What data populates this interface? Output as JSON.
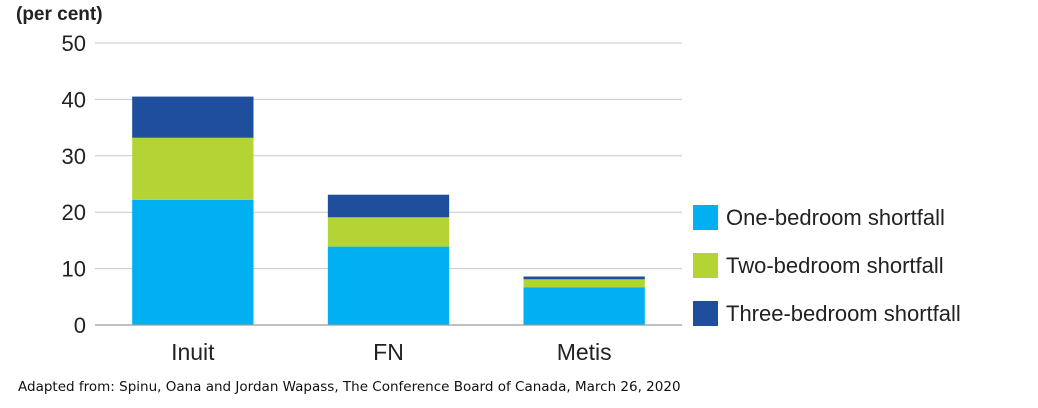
{
  "chart_data": {
    "type": "bar",
    "stacked": true,
    "unit_label": "(per cent)",
    "categories": [
      "Inuit",
      "FN",
      "Metis"
    ],
    "series": [
      {
        "name": "One-bedroom shortfall",
        "color": "#00b0f0",
        "values": [
          22.2,
          13.9,
          6.7
        ]
      },
      {
        "name": "Two-bedroom shortfall",
        "color": "#b4d335",
        "values": [
          11.0,
          5.2,
          1.4
        ]
      },
      {
        "name": "Three-bedroom shortfall",
        "color": "#1f4e9c",
        "values": [
          7.3,
          4.0,
          0.5
        ]
      }
    ],
    "ylim": [
      0,
      50
    ],
    "yticks": [
      0,
      10,
      20,
      30,
      40,
      50
    ],
    "grid": true,
    "legend_position": "right"
  },
  "source_note": "Adapted from: Spinu, Oana and Jordan Wapass, The Conference Board of Canada, March 26, 2020"
}
